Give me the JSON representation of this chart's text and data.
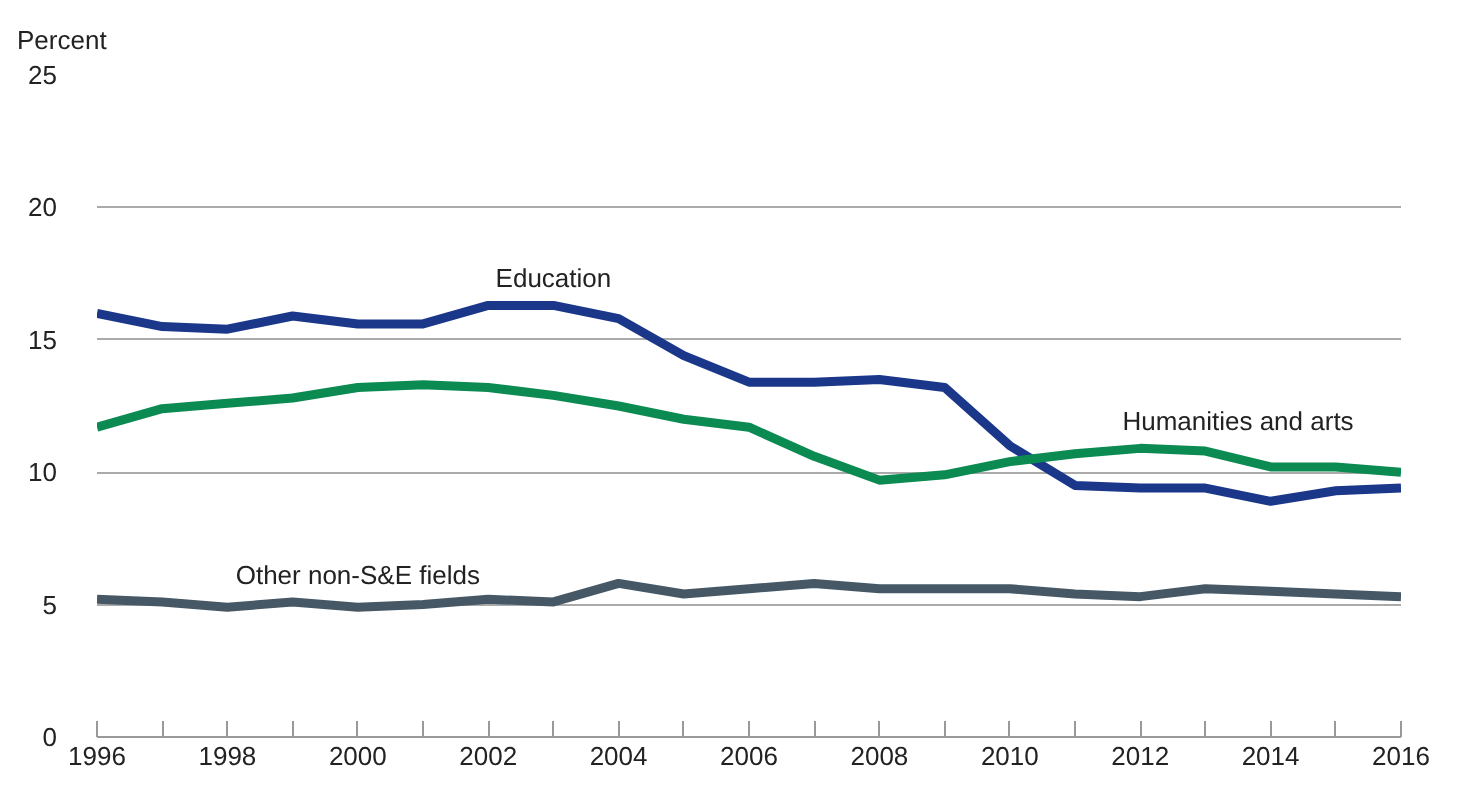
{
  "chart_data": {
    "type": "line",
    "ylabel": "Percent",
    "x": [
      1996,
      1997,
      1998,
      1999,
      2000,
      2001,
      2002,
      2003,
      2004,
      2005,
      2006,
      2007,
      2008,
      2009,
      2010,
      2011,
      2012,
      2013,
      2014,
      2015,
      2016
    ],
    "series": [
      {
        "name": "Education",
        "color": "#1a378a",
        "values": [
          16.0,
          15.5,
          15.4,
          15.9,
          15.6,
          15.6,
          16.3,
          16.3,
          15.8,
          14.4,
          13.4,
          13.4,
          13.5,
          13.2,
          11.0,
          9.5,
          9.4,
          9.4,
          8.9,
          9.3,
          9.4
        ]
      },
      {
        "name": "Humanities and arts",
        "color": "#0b8a52",
        "values": [
          11.7,
          12.4,
          12.6,
          12.8,
          13.2,
          13.3,
          13.2,
          12.9,
          12.5,
          12.0,
          11.7,
          10.6,
          9.7,
          9.9,
          10.4,
          10.7,
          10.9,
          10.8,
          10.2,
          10.2,
          10.0
        ]
      },
      {
        "name": "Other non-S&E fields",
        "color": "#465866",
        "values": [
          5.2,
          5.1,
          4.9,
          5.1,
          4.9,
          5.0,
          5.2,
          5.1,
          5.8,
          5.4,
          5.6,
          5.8,
          5.6,
          5.6,
          5.6,
          5.4,
          5.3,
          5.6,
          5.5,
          5.4,
          5.3
        ]
      }
    ],
    "xlim": [
      1996,
      2016
    ],
    "xticks": [
      1996,
      1998,
      2000,
      2002,
      2004,
      2006,
      2008,
      2010,
      2012,
      2014,
      2016
    ],
    "ylim": [
      0,
      25
    ],
    "yticks": [
      0,
      5,
      10,
      15,
      20,
      25
    ],
    "grid": "y",
    "marker": "none",
    "line_style": "solid"
  }
}
